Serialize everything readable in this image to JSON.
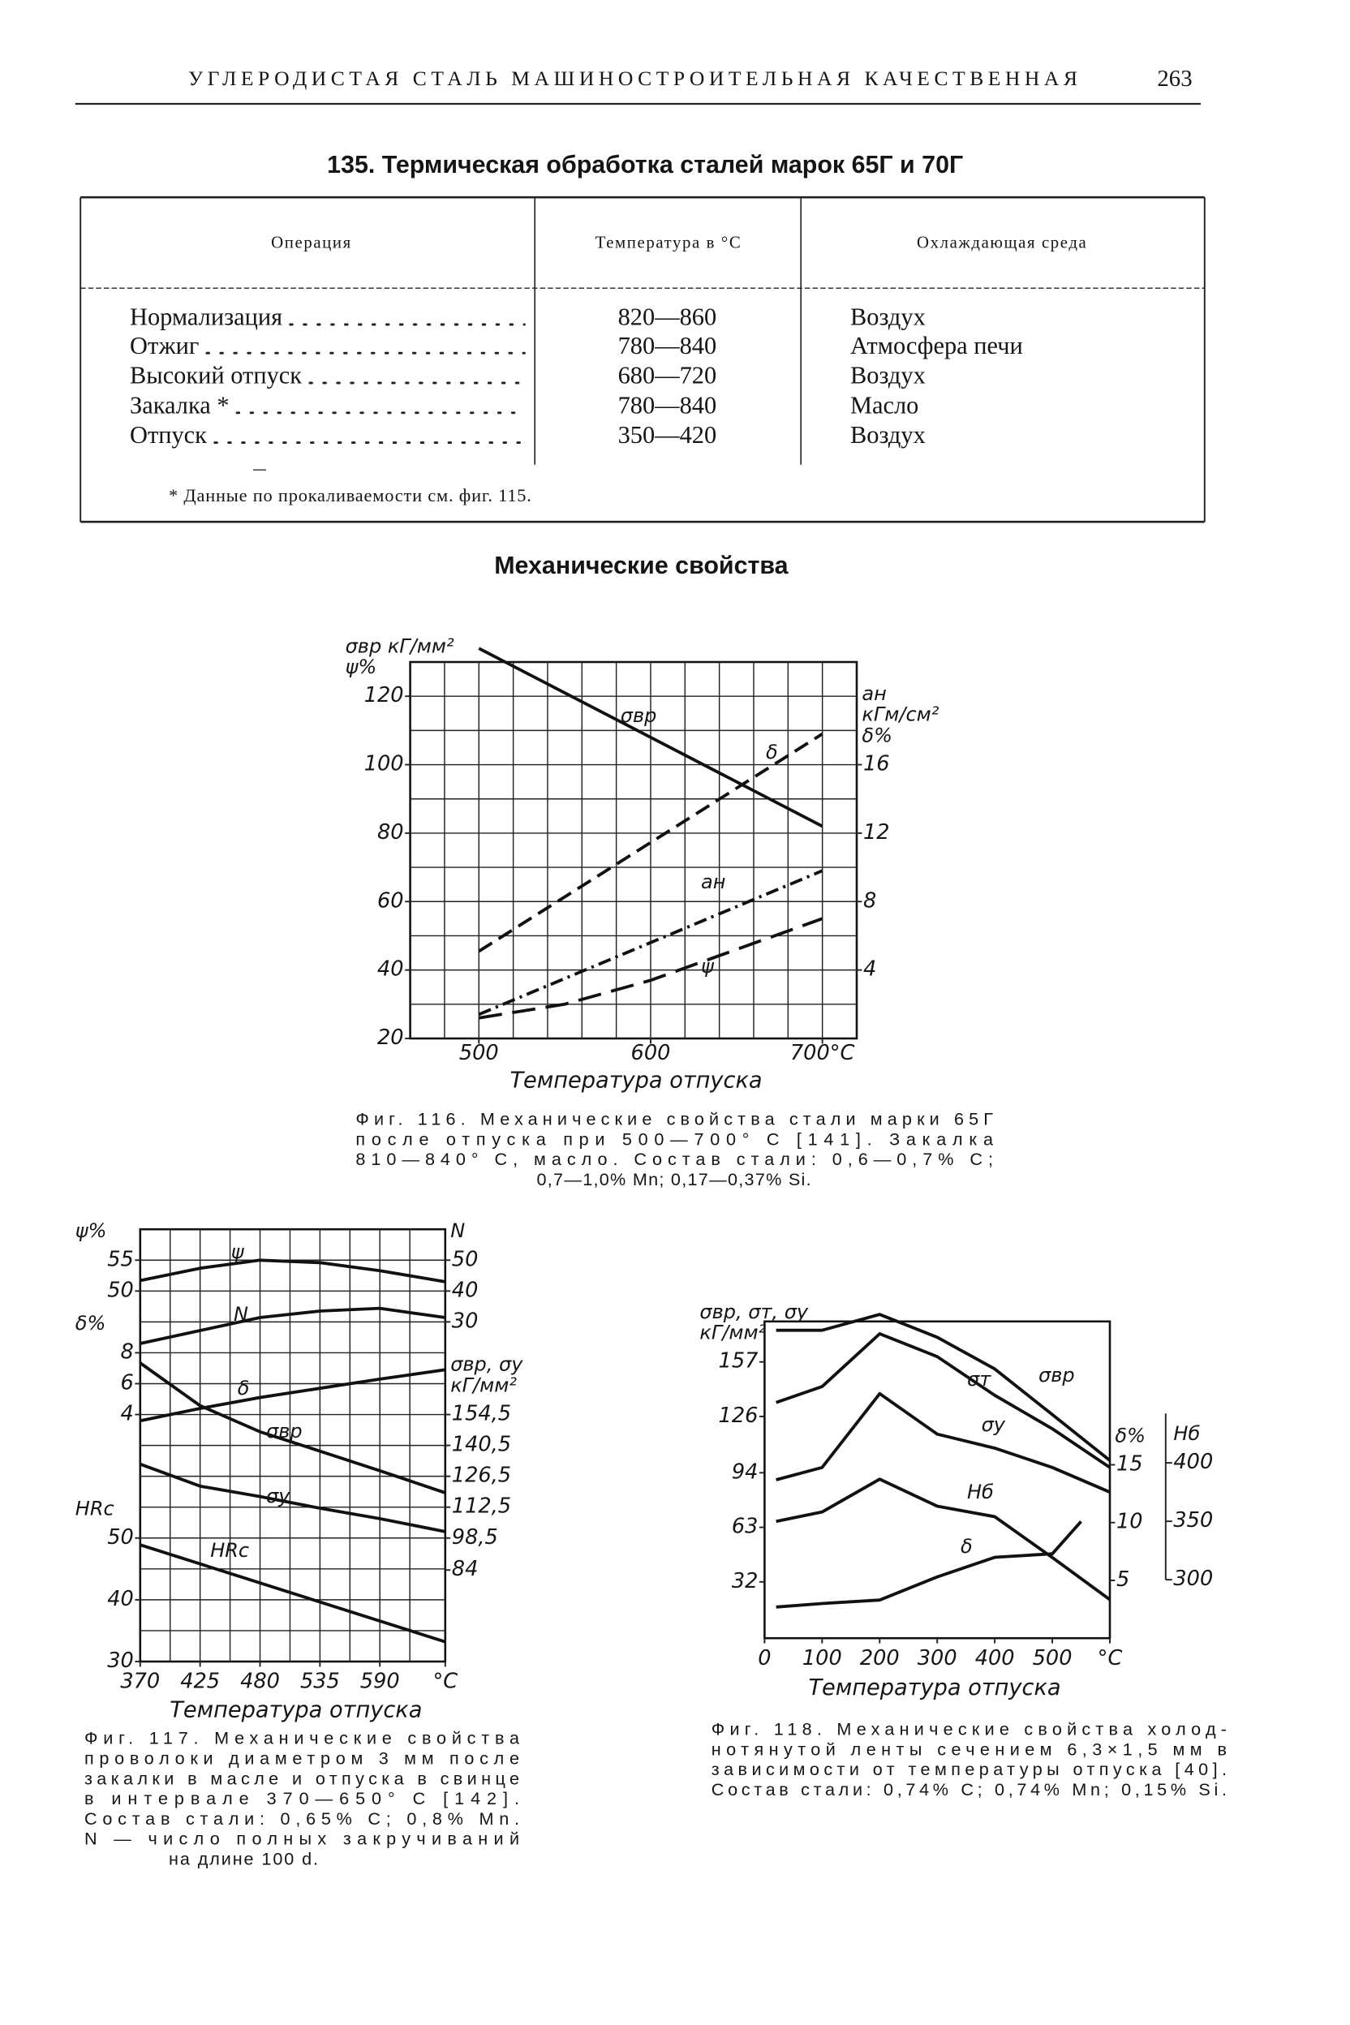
{
  "header": {
    "running_title": "УГЛЕРОДИСТАЯ СТАЛЬ МАШИНОСТРОИТЕЛЬНАЯ КАЧЕСТВЕННАЯ",
    "page_number": "263"
  },
  "table": {
    "title": "135. Термическая обработка сталей марок 65Г и 70Г",
    "columns": [
      "Операция",
      "Температура в °С",
      "Охлаждающая среда"
    ],
    "rows": [
      [
        "Нормализация",
        "820—860",
        "Воздух"
      ],
      [
        "Отжиг",
        "780—840",
        "Атмосфера печи"
      ],
      [
        "Высокий отпуск",
        "680—720",
        "Воздух"
      ],
      [
        "Закалка *",
        "780—840",
        "Масло"
      ],
      [
        "Отпуск",
        "350—420",
        "Воздух"
      ]
    ],
    "footnote": "* Данные по прокаливаемости см. фиг. 115."
  },
  "section_title": "Механические свойства",
  "chart_data": [
    {
      "type": "line",
      "x_label": "Температура отпуска",
      "xlim": [
        460,
        720
      ],
      "xticks": [
        500,
        600,
        {
          "value": 700,
          "label": "700°C"
        }
      ],
      "xgrid": [
        480,
        500,
        520,
        540,
        560,
        580,
        600,
        620,
        640,
        660,
        680,
        700
      ],
      "axes": {
        "y": {
          "label": [
            "σвр кГ/мм²",
            "ψ%"
          ],
          "side": "left",
          "lim": [
            20,
            130
          ],
          "ticks": [
            20,
            40,
            60,
            80,
            100,
            120
          ],
          "grid": [
            30,
            40,
            50,
            60,
            70,
            80,
            90,
            100,
            110,
            120
          ]
        },
        "y2": {
          "label": [
            "aн",
            "кГм/см²",
            "δ%"
          ],
          "side": "right",
          "lim": [
            0,
            22
          ],
          "ticks": [
            4,
            8,
            12,
            16
          ]
        }
      },
      "series": [
        {
          "name": "σвр",
          "axis": "y",
          "style": "solid",
          "x": [
            500,
            600,
            700
          ],
          "values": [
            134,
            108,
            82
          ]
        },
        {
          "name": "δ",
          "axis": "y2",
          "style": "dash",
          "x": [
            500,
            700
          ],
          "values": [
            5.1,
            17.8
          ]
        },
        {
          "name": "aн",
          "axis": "y2",
          "style": "dashdot",
          "x": [
            500,
            700
          ],
          "values": [
            1.4,
            9.8
          ]
        },
        {
          "name": "ψ",
          "axis": "y",
          "style": "longdash",
          "x": [
            500,
            550,
            600,
            700
          ],
          "values": [
            26,
            30,
            37,
            55
          ]
        }
      ],
      "caption": [
        "Фиг. 116. Механические свойства стали марки 65Г",
        "после отпуска при 500—700° С [141]. Закалка",
        "810—840° С, масло. Состав стали: 0,6—0,7% С;",
        "0,7—1,0% Mn; 0,17—0,37% Si."
      ]
    },
    {
      "type": "line",
      "x_label": "Температура отпуска",
      "xlim": [
        370,
        650
      ],
      "x": [
        370,
        425,
        480,
        535,
        590,
        650
      ],
      "xticks": [
        370,
        425,
        480,
        535,
        590,
        {
          "value": 650,
          "label": "°C"
        }
      ],
      "xgrid": [
        397.5,
        425,
        452.5,
        480,
        507.5,
        535,
        562.5,
        590,
        617.5
      ],
      "axes": {
        "psi": {
          "label": [
            "ψ%"
          ],
          "side": "left",
          "lim": [
            -10,
            60
          ],
          "ticks": [
            55,
            50
          ]
        },
        "d": {
          "label": [
            "δ%"
          ],
          "side": "left",
          "lim": [
            -12,
            16
          ],
          "ticks": [
            8,
            6,
            4
          ]
        },
        "h": {
          "label": [
            "HRc"
          ],
          "side": "left",
          "lim": [
            30,
            100
          ],
          "ticks": [
            50,
            40,
            30
          ],
          "grid": [
            35,
            40,
            45,
            50,
            55,
            60,
            65,
            70,
            75,
            80,
            85,
            90,
            95
          ]
        },
        "N": {
          "label": [
            "N"
          ],
          "side": "right",
          "lim": [
            -80,
            60
          ],
          "ticks": [
            50,
            40,
            30
          ]
        },
        "s": {
          "label": [
            "σвр, σу",
            "кГ/мм²"
          ],
          "side": "right",
          "lim": [
            42.5,
            238.5
          ],
          "ticks": [
            {
              "value": 154.5,
              "label": "154,5"
            },
            {
              "value": 140.5,
              "label": "140,5"
            },
            {
              "value": 126.5,
              "label": "126,5"
            },
            {
              "value": 112.5,
              "label": "112,5"
            },
            {
              "value": 98.5,
              "label": "98,5"
            },
            84
          ]
        }
      },
      "series": [
        {
          "name": "ψ",
          "axis": "psi",
          "style": "solid",
          "values": [
            51.7,
            53.7,
            55,
            54.6,
            53.3,
            51.5
          ]
        },
        {
          "name": "N",
          "axis": "N",
          "style": "solid",
          "values": [
            23,
            27.2,
            31.4,
            33.5,
            34.4,
            31.4
          ]
        },
        {
          "name": "δ",
          "axis": "d",
          "style": "solid",
          "values": [
            3.6,
            4.4,
            5.1,
            5.7,
            6.3,
            6.9
          ]
        },
        {
          "name": "σвр",
          "axis": "s",
          "style": "solid",
          "values": [
            177.9,
            158.5,
            146.7,
            137.9,
            129,
            119
          ]
        },
        {
          "name": "σу",
          "axis": "s",
          "style": "solid",
          "values": [
            132,
            122,
            117.3,
            112,
            107.3,
            101.4
          ]
        },
        {
          "name": "HRc",
          "axis": "h",
          "style": "solid",
          "x": [
            370,
            650
          ],
          "values": [
            48.9,
            33.2
          ]
        }
      ],
      "caption": [
        "Фиг. 117. Механические свойства",
        "проволоки диаметром 3 мм после",
        "закалки в масле и отпуска в свинце",
        "в интервале 370—650° С [142].",
        "Состав стали: 0,65% С; 0,8% Mn.",
        "N — число полных закручиваний",
        "на длине 100 d."
      ]
    },
    {
      "type": "line",
      "x_label": "Температура отпуска",
      "xlim": [
        0,
        600
      ],
      "x": [
        20,
        100,
        200,
        300,
        400,
        500,
        600
      ],
      "xticks": [
        0,
        100,
        200,
        300,
        400,
        500,
        {
          "value": 600,
          "label": "°C"
        }
      ],
      "axes": {
        "s": {
          "label": [
            "σвр, σт, σу",
            "кГ/мм²"
          ],
          "side": "left",
          "lim": [
            0,
            180
          ],
          "ticks": [
            32,
            63,
            94,
            126,
            157
          ]
        },
        "d": {
          "label": [
            "δ%"
          ],
          "side": "right",
          "lim": [
            0,
            27.4
          ],
          "ticks": [
            5,
            10,
            15
          ]
        },
        "h": {
          "label": [
            "Hб"
          ],
          "side": "right2",
          "lim": [
            250,
            521
          ],
          "ticks": [
            300,
            350,
            400
          ]
        }
      },
      "series": [
        {
          "name": "σвр",
          "axis": "s",
          "style": "solid",
          "values": [
            175,
            175,
            184,
            171,
            153,
            127,
            101
          ]
        },
        {
          "name": "σт",
          "axis": "s",
          "style": "solid",
          "values": [
            134,
            143,
            173,
            160,
            138,
            119,
            97
          ]
        },
        {
          "name": "σу",
          "axis": "s",
          "style": "solid",
          "values": [
            90,
            97,
            139,
            116,
            108,
            97,
            83
          ]
        },
        {
          "name": "Hб",
          "axis": "h",
          "style": "solid",
          "values": [
            350,
            358,
            386,
            363,
            354,
            319,
            283
          ]
        },
        {
          "name": "δ",
          "axis": "d",
          "style": "solid",
          "x": [
            20,
            100,
            200,
            300,
            400,
            500,
            550
          ],
          "values": [
            2.7,
            3.0,
            3.3,
            5.3,
            7.0,
            7.3,
            10.1
          ]
        }
      ],
      "caption": [
        "Фиг. 118. Механические свойства холод-",
        "нотянутой ленты сечением 6,3×1,5 мм в",
        "зависимости от температуры отпуска [40].",
        "Состав стали: 0,74% С; 0,74% Mn; 0,15% Si."
      ]
    }
  ]
}
